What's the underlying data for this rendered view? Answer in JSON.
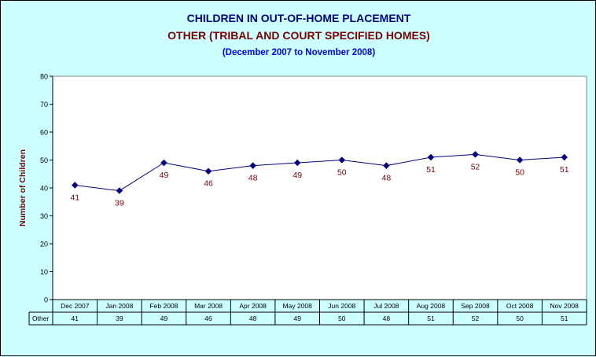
{
  "titles": {
    "line1": "CHILDREN IN OUT-OF-HOME PLACEMENT",
    "line2": "OTHER (TRIBAL AND COURT SPECIFIED HOMES)",
    "line3": "(December 2007 to November 2008)"
  },
  "chart_data": {
    "type": "line",
    "ylabel": "Number of Children",
    "ylim": [
      0,
      80
    ],
    "yticks": [
      0,
      10,
      20,
      30,
      40,
      50,
      60,
      70,
      80
    ],
    "categories": [
      "Dec 2007",
      "Jan 2008",
      "Feb 2008",
      "Mar 2008",
      "Apr 2008",
      "May 2008",
      "Jun 2008",
      "Jul 2008",
      "Aug 2008",
      "Sep 2008",
      "Oct 2008",
      "Nov 2008"
    ],
    "series": [
      {
        "name": "Other",
        "values": [
          41,
          39,
          49,
          46,
          48,
          49,
          50,
          48,
          51,
          52,
          50,
          51
        ]
      }
    ],
    "grid": false,
    "data_table": true,
    "colors": {
      "line": "#000080",
      "marker": "#000080",
      "data_label": "#800000",
      "ylabel": "#800000",
      "plot_bg": "#ffffff",
      "page_bg": "#ccffff"
    }
  }
}
